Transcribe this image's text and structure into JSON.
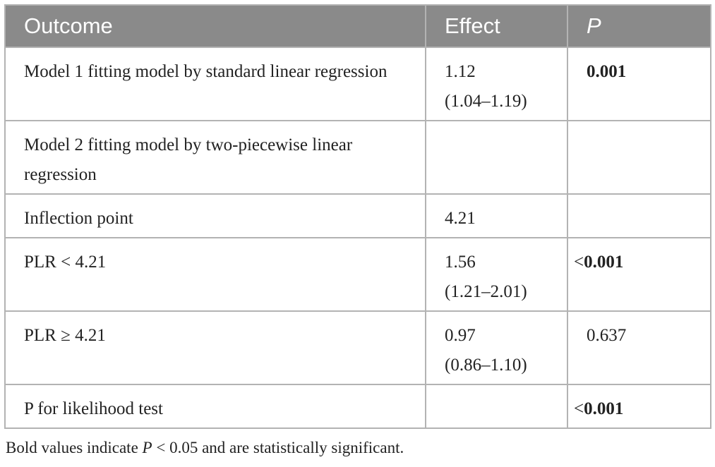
{
  "table": {
    "header": [
      "Outcome",
      "Effect",
      "P"
    ],
    "rows": [
      {
        "outcome": "Model 1 fitting model by standard linear regression",
        "effect": [
          "1.12",
          "(1.04–1.19)"
        ],
        "p": {
          "bold": "0.001"
        }
      },
      {
        "outcome": "Model 2 fitting model by two-piecewise linear regression"
      },
      {
        "outcome": "Inflection point",
        "effect": [
          "4.21"
        ]
      },
      {
        "outcome": "PLR < 4.21",
        "effect": [
          "1.56",
          "(1.21–2.01)"
        ],
        "p": {
          "prefix": "<",
          "bold": "0.001"
        }
      },
      {
        "outcome": "PLR ≥ 4.21",
        "effect": [
          "0.97",
          "(0.86–1.10)"
        ],
        "p": {
          "plain": "0.637"
        }
      },
      {
        "outcome": "P for likelihood test",
        "p": {
          "prefix": "<",
          "bold": "0.001"
        }
      }
    ]
  },
  "footnote": {
    "before": "Bold values indicate ",
    "italic": "P",
    "after": " < 0.05 and are statistically significant."
  }
}
